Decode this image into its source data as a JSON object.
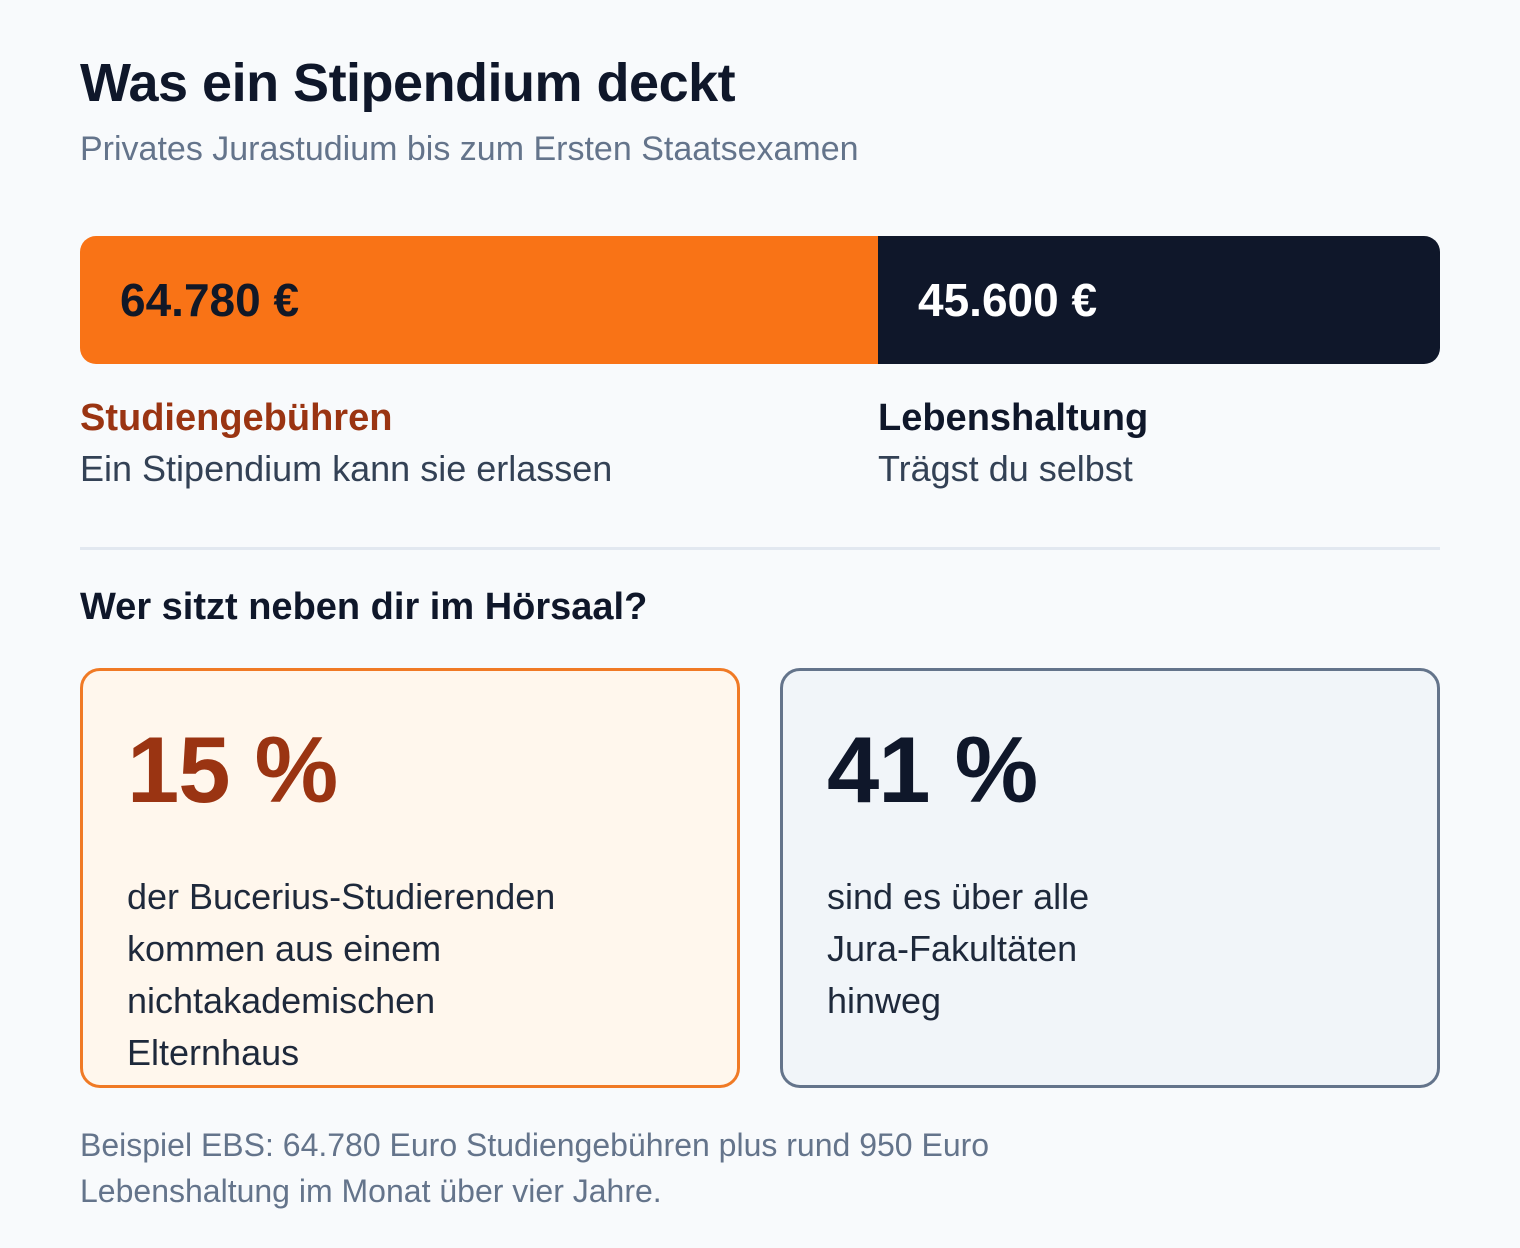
{
  "title": "Was ein Stipendium deckt",
  "subtitle": "Privates Jurastudium bis zum Ersten Staatsexamen",
  "chart_data": {
    "type": "bar",
    "orientation": "horizontal-stacked",
    "segments": [
      {
        "value": 64780,
        "value_label": "64.780 €",
        "name": "Studiengebühren",
        "note": "Ein Stipendium kann sie erlassen",
        "color": "#f97316",
        "title_color": "#9a3412"
      },
      {
        "value": 45600,
        "value_label": "45.600 €",
        "name": "Lebenshaltung",
        "note": "Trägst du selbst",
        "color": "#0f172a",
        "title_color": "#0f172a"
      }
    ]
  },
  "section_heading": "Wer sitzt neben dir im Hörsaal?",
  "cards": [
    {
      "value": "15 %",
      "text": "der Bucerius-Studierenden\nkommen aus einem\nnichtakademischen\nElternhaus",
      "accent": "#9a3412",
      "border": "#f07a25",
      "background": "#fff7ed"
    },
    {
      "value": "41 %",
      "text": "sind es über alle\nJura-Fakultäten\nhinweg",
      "accent": "#0f172a",
      "border": "#64748b",
      "background": "#f1f5f9"
    }
  ],
  "footnote": "Beispiel EBS: 64.780 Euro Studiengebühren plus rund 950 Euro\nLebenshaltung im Monat über vier Jahre."
}
